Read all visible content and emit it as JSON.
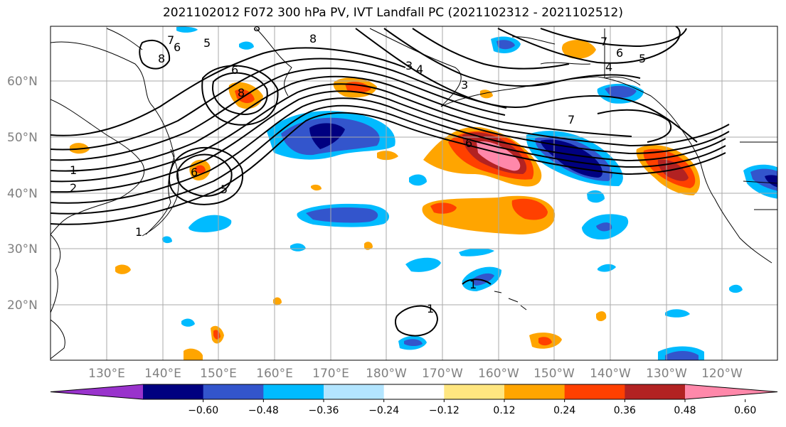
{
  "title": "2021102012 F072 300 hPa PV, IVT Landfall PC (2021102312 - 2021102512)",
  "lat_labels": [
    "60°N",
    "50°N",
    "40°N",
    "30°N",
    "20°N"
  ],
  "lon_labels": [
    "130°E",
    "140°E",
    "150°E",
    "160°E",
    "170°E",
    "180°W",
    "170°W",
    "160°W",
    "150°W",
    "140°W",
    "130°W",
    "120°W"
  ],
  "colorbar": {
    "colors": [
      "#9933cc",
      "#000080",
      "#3355cc",
      "#00bbff",
      "#b3e5ff",
      "#ffffff",
      "#ffe680",
      "#ffa500",
      "#ff4000",
      "#b22222",
      "#ff88aa"
    ],
    "tick_labels": [
      "−0.60",
      "−0.48",
      "−0.36",
      "−0.24",
      "−0.12",
      "0.12",
      "0.24",
      "0.36",
      "0.48",
      "0.60"
    ]
  },
  "contour_labels": [
    "8",
    "5",
    "6",
    "8",
    "6",
    "8",
    "7",
    "6",
    "5",
    "4",
    "7",
    "1",
    "2",
    "1",
    "5",
    "6",
    "3",
    "4",
    "3",
    "8",
    "6",
    "7",
    "1",
    "1"
  ]
}
